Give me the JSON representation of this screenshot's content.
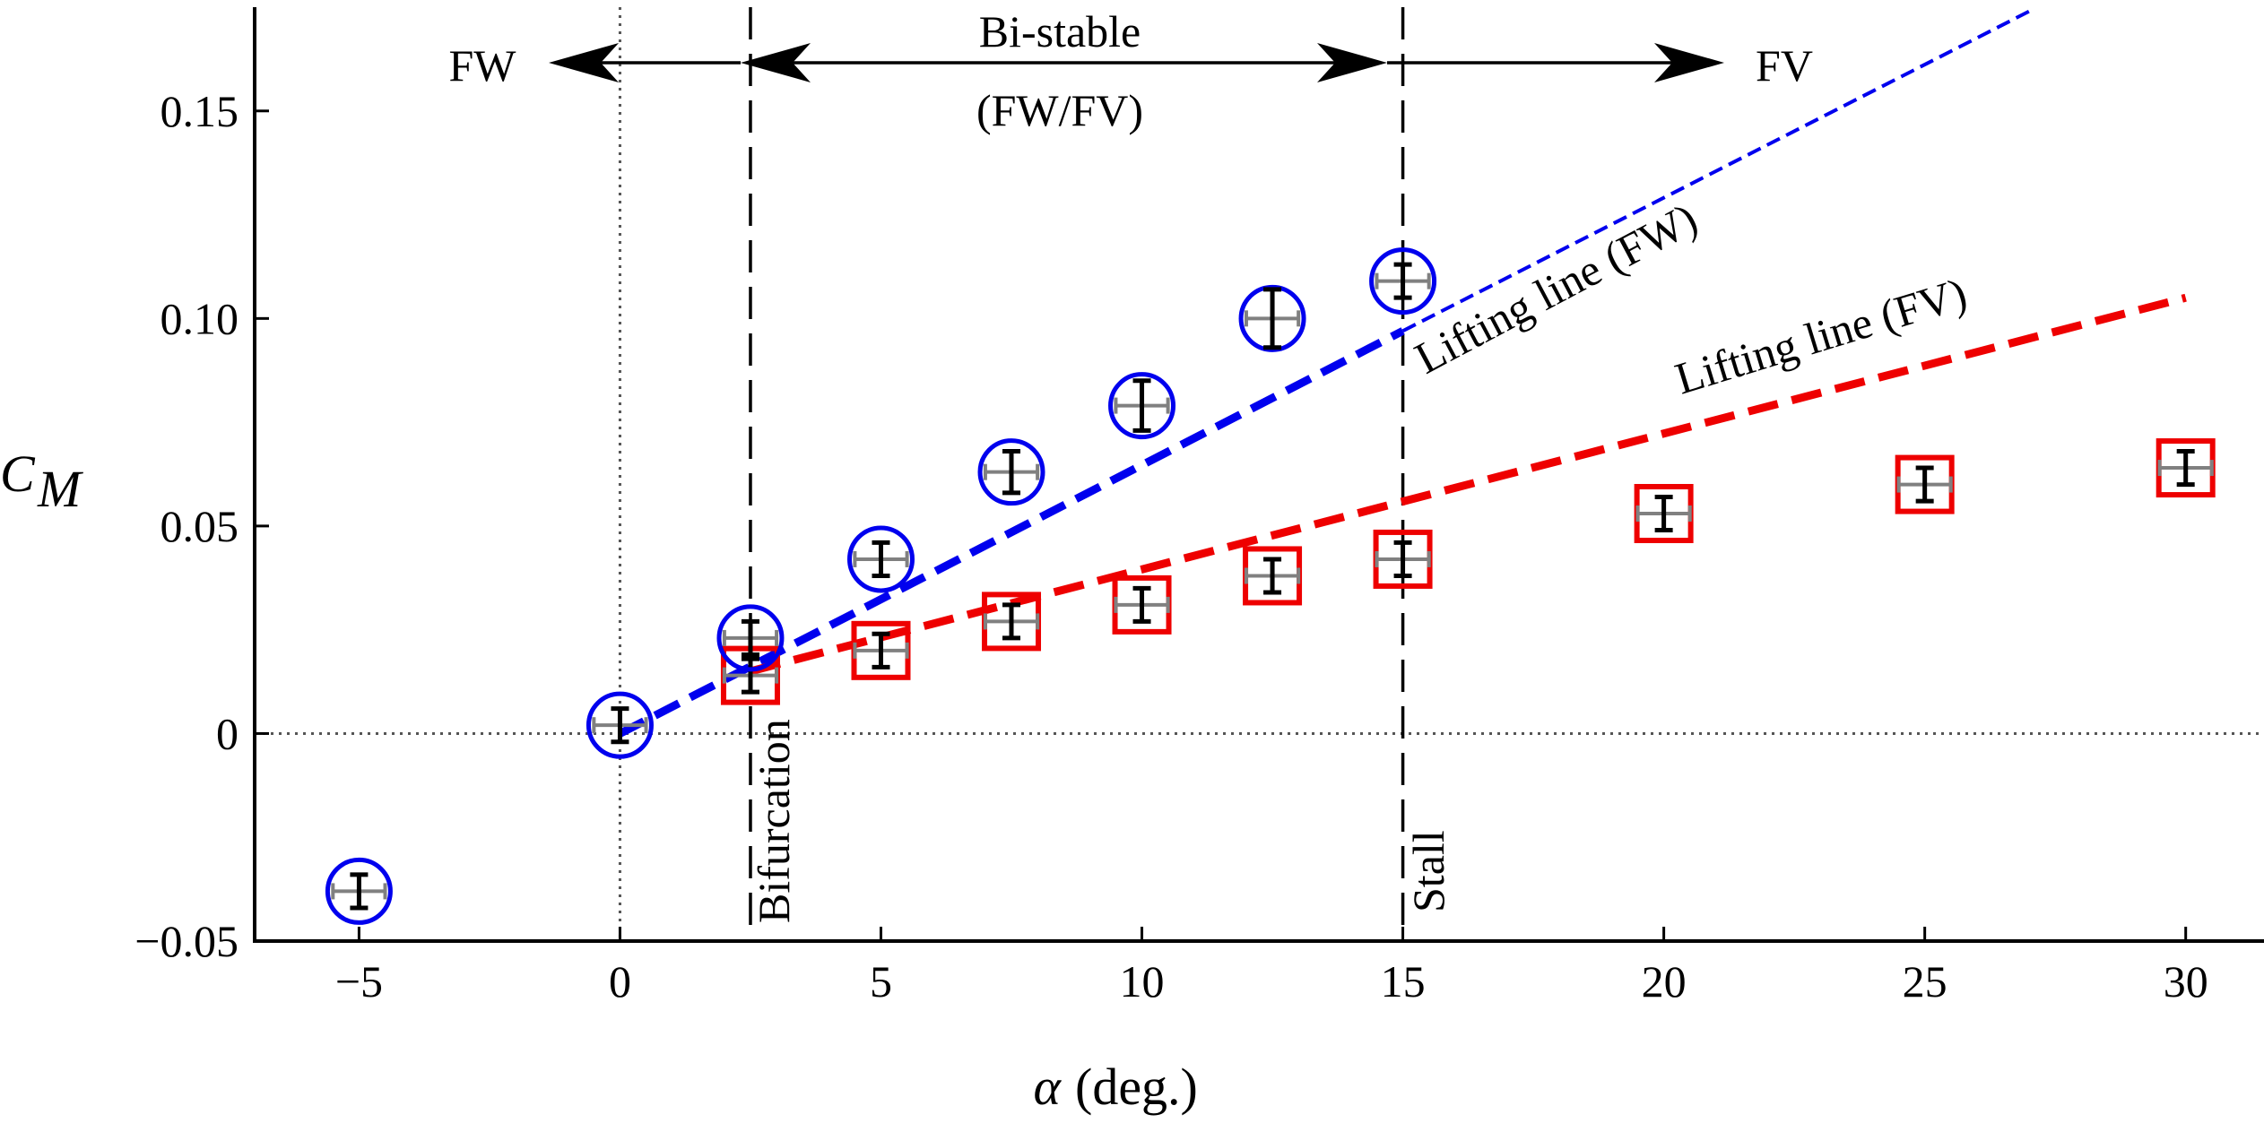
{
  "chart_data": {
    "type": "scatter",
    "title": "",
    "xlabel": "(deg.)",
    "xlabel_symbol": "α",
    "ylabel": "C",
    "ylabel_subscript": "M",
    "xlim": [
      -7,
      31.5
    ],
    "ylim": [
      -0.05,
      0.175
    ],
    "xticks": [
      -5,
      0,
      5,
      10,
      15,
      20,
      25,
      30
    ],
    "xtick_labels": [
      "−5",
      "0",
      "5",
      "10",
      "15",
      "20",
      "25",
      "30"
    ],
    "yticks": [
      -0.05,
      0,
      0.05,
      0.1,
      0.15
    ],
    "ytick_labels": [
      "−0.05",
      "0",
      "0.05",
      "0.10",
      "0.15"
    ],
    "reference_lines": {
      "zero_x": 0,
      "zero_y": 0,
      "bifurcation_alpha": 2.5,
      "stall_alpha": 15
    },
    "series": [
      {
        "name": "FW",
        "marker": "circle",
        "color": "#0000ee",
        "points": [
          {
            "x": -5,
            "y": -0.038,
            "yerr": 0.004,
            "xerr": 0.5
          },
          {
            "x": 0,
            "y": 0.002,
            "yerr": 0.004,
            "xerr": 0.5
          },
          {
            "x": 2.5,
            "y": 0.023,
            "yerr": 0.004,
            "xerr": 0.5
          },
          {
            "x": 5,
            "y": 0.042,
            "yerr": 0.004,
            "xerr": 0.5
          },
          {
            "x": 7.5,
            "y": 0.063,
            "yerr": 0.005,
            "xerr": 0.5
          },
          {
            "x": 10,
            "y": 0.079,
            "yerr": 0.006,
            "xerr": 0.5
          },
          {
            "x": 12.5,
            "y": 0.1,
            "yerr": 0.007,
            "xerr": 0.5
          },
          {
            "x": 15,
            "y": 0.109,
            "yerr": 0.004,
            "xerr": 0.5
          }
        ]
      },
      {
        "name": "FV",
        "marker": "square",
        "color": "#ee0000",
        "points": [
          {
            "x": 2.5,
            "y": 0.014,
            "yerr": 0.004,
            "xerr": 0.5
          },
          {
            "x": 5,
            "y": 0.02,
            "yerr": 0.004,
            "xerr": 0.5
          },
          {
            "x": 7.5,
            "y": 0.027,
            "yerr": 0.004,
            "xerr": 0.5
          },
          {
            "x": 10,
            "y": 0.031,
            "yerr": 0.004,
            "xerr": 0.5
          },
          {
            "x": 12.5,
            "y": 0.038,
            "yerr": 0.004,
            "xerr": 0.5
          },
          {
            "x": 15,
            "y": 0.042,
            "yerr": 0.004,
            "xerr": 0.5
          },
          {
            "x": 20,
            "y": 0.053,
            "yerr": 0.004,
            "xerr": 0.5
          },
          {
            "x": 25,
            "y": 0.06,
            "yerr": 0.004,
            "xerr": 0.5
          },
          {
            "x": 30,
            "y": 0.064,
            "yerr": 0.004,
            "xerr": 0.5
          }
        ]
      }
    ],
    "lines": [
      {
        "name": "Lifting line (FW)",
        "color": "#0000ee",
        "thick_x": [
          0,
          15
        ],
        "thick_y": [
          0,
          0.097
        ],
        "thin_x": [
          15,
          27
        ],
        "thin_y": [
          0.097,
          0.174
        ]
      },
      {
        "name": "Lifting line (FV)",
        "color": "#ee0000",
        "x": [
          2.5,
          30
        ],
        "y": [
          0.015,
          0.105
        ]
      }
    ],
    "annotations": {
      "fw_label": "FW",
      "fv_label": "FV",
      "bistable_line1": "Bi-stable",
      "bistable_line2": "(FW/FV)",
      "bifurcation": "Bifurcation",
      "stall": "Stall",
      "lifting_fw": "Lifting line (FW)",
      "lifting_fv": "Lifting line (FV)"
    },
    "colors": {
      "fw": "#0000ee",
      "fv": "#ee0000",
      "errorbar_y": "#000000",
      "errorbar_x": "#808080",
      "axis": "#000000",
      "zero_line": "#555555"
    }
  }
}
